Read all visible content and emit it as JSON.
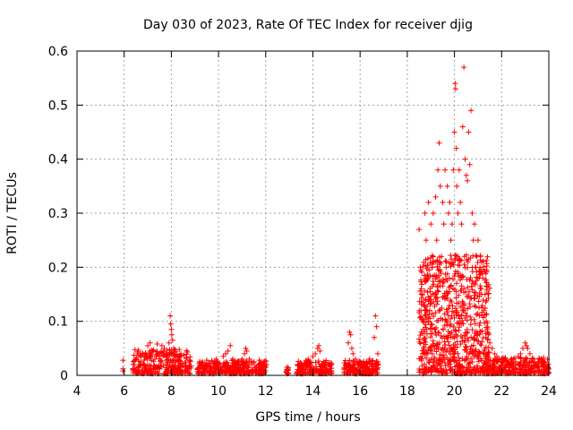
{
  "chart_data": {
    "type": "scatter",
    "title": "Day 030 of 2023, Rate Of TEC Index for receiver djig",
    "xlabel": "GPS time / hours",
    "ylabel": "ROTI / TECUs",
    "xlim": [
      4,
      24
    ],
    "ylim": [
      0,
      0.6
    ],
    "x_ticks": [
      4,
      6,
      8,
      10,
      12,
      14,
      16,
      18,
      20,
      22,
      24
    ],
    "y_ticks": [
      0,
      0.1,
      0.2,
      0.3,
      0.4,
      0.5,
      0.6
    ],
    "x_tick_labels": [
      "4",
      "6",
      "8",
      "10",
      "12",
      "14",
      "16",
      "18",
      "20",
      "22",
      "24"
    ],
    "y_tick_labels": [
      "0",
      "0.1",
      "0.2",
      "0.3",
      "0.4",
      "0.5",
      "0.6"
    ],
    "grid": true,
    "marker": "+",
    "color": "#ff0000",
    "series": [
      {
        "values": [
          [
            5.95,
            0.028
          ],
          [
            5.95,
            0.012
          ],
          [
            5.95,
            0.008
          ],
          [
            6.4,
            0.02
          ],
          [
            6.5,
            0.03
          ],
          [
            6.6,
            0.015
          ],
          [
            6.7,
            0.025
          ],
          [
            6.8,
            0.01
          ],
          [
            6.9,
            0.04
          ],
          [
            7.0,
            0.055
          ],
          [
            7.05,
            0.035
          ],
          [
            7.1,
            0.06
          ],
          [
            7.2,
            0.045
          ],
          [
            7.3,
            0.03
          ],
          [
            7.4,
            0.058
          ],
          [
            7.5,
            0.04
          ],
          [
            7.6,
            0.055
          ],
          [
            7.7,
            0.05
          ],
          [
            7.8,
            0.035
          ],
          [
            7.9,
            0.06
          ],
          [
            7.95,
            0.11
          ],
          [
            7.97,
            0.095
          ],
          [
            8.0,
            0.085
          ],
          [
            8.02,
            0.075
          ],
          [
            8.05,
            0.065
          ],
          [
            8.1,
            0.05
          ],
          [
            8.2,
            0.035
          ],
          [
            8.3,
            0.025
          ],
          [
            8.4,
            0.04
          ],
          [
            8.5,
            0.02
          ],
          [
            8.6,
            0.015
          ],
          [
            8.7,
            0.01
          ],
          [
            9.2,
            0.025
          ],
          [
            9.3,
            0.02
          ],
          [
            9.4,
            0.015
          ],
          [
            9.5,
            0.028
          ],
          [
            9.6,
            0.018
          ],
          [
            9.7,
            0.012
          ],
          [
            9.8,
            0.022
          ],
          [
            9.9,
            0.03
          ],
          [
            10.0,
            0.02
          ],
          [
            10.1,
            0.015
          ],
          [
            10.2,
            0.035
          ],
          [
            10.3,
            0.04
          ],
          [
            10.4,
            0.045
          ],
          [
            10.5,
            0.055
          ],
          [
            10.6,
            0.03
          ],
          [
            10.7,
            0.02
          ],
          [
            10.8,
            0.025
          ],
          [
            10.9,
            0.015
          ],
          [
            11.0,
            0.03
          ],
          [
            11.1,
            0.04
          ],
          [
            11.15,
            0.05
          ],
          [
            11.2,
            0.045
          ],
          [
            11.3,
            0.03
          ],
          [
            11.4,
            0.02
          ],
          [
            11.5,
            0.025
          ],
          [
            11.6,
            0.015
          ],
          [
            11.7,
            0.02
          ],
          [
            11.8,
            0.018
          ],
          [
            11.9,
            0.025
          ],
          [
            12.0,
            0.015
          ],
          [
            12.9,
            0.015
          ],
          [
            12.95,
            0.01
          ],
          [
            13.4,
            0.01
          ],
          [
            13.5,
            0.02
          ],
          [
            13.6,
            0.015
          ],
          [
            13.7,
            0.025
          ],
          [
            13.8,
            0.03
          ],
          [
            13.9,
            0.02
          ],
          [
            14.0,
            0.035
          ],
          [
            14.1,
            0.04
          ],
          [
            14.2,
            0.05
          ],
          [
            14.25,
            0.055
          ],
          [
            14.3,
            0.045
          ],
          [
            14.4,
            0.02
          ],
          [
            14.5,
            0.015
          ],
          [
            14.6,
            0.01
          ],
          [
            14.7,
            0.012
          ],
          [
            15.4,
            0.02
          ],
          [
            15.5,
            0.06
          ],
          [
            15.55,
            0.08
          ],
          [
            15.6,
            0.075
          ],
          [
            15.65,
            0.05
          ],
          [
            15.7,
            0.04
          ],
          [
            15.8,
            0.03
          ],
          [
            15.9,
            0.02
          ],
          [
            16.0,
            0.025
          ],
          [
            16.1,
            0.015
          ],
          [
            16.2,
            0.02
          ],
          [
            16.3,
            0.015
          ],
          [
            16.4,
            0.03
          ],
          [
            16.5,
            0.02
          ],
          [
            16.6,
            0.07
          ],
          [
            16.65,
            0.11
          ],
          [
            16.7,
            0.09
          ],
          [
            16.75,
            0.04
          ],
          [
            18.5,
            0.27
          ],
          [
            18.55,
            0.2
          ],
          [
            18.6,
            0.15
          ],
          [
            18.65,
            0.1
          ],
          [
            18.7,
            0.06
          ],
          [
            18.75,
            0.3
          ],
          [
            18.8,
            0.25
          ],
          [
            18.85,
            0.18
          ],
          [
            18.9,
            0.32
          ],
          [
            18.95,
            0.12
          ],
          [
            19.0,
            0.28
          ],
          [
            19.05,
            0.2
          ],
          [
            19.1,
            0.3
          ],
          [
            19.15,
            0.15
          ],
          [
            19.2,
            0.33
          ],
          [
            19.25,
            0.25
          ],
          [
            19.3,
            0.38
          ],
          [
            19.35,
            0.43
          ],
          [
            19.4,
            0.35
          ],
          [
            19.45,
            0.22
          ],
          [
            19.5,
            0.32
          ],
          [
            19.55,
            0.28
          ],
          [
            19.6,
            0.38
          ],
          [
            19.65,
            0.2
          ],
          [
            19.7,
            0.35
          ],
          [
            19.75,
            0.3
          ],
          [
            19.8,
            0.32
          ],
          [
            19.85,
            0.25
          ],
          [
            19.9,
            0.28
          ],
          [
            19.95,
            0.38
          ],
          [
            20.0,
            0.45
          ],
          [
            20.03,
            0.54
          ],
          [
            20.05,
            0.53
          ],
          [
            20.08,
            0.42
          ],
          [
            20.1,
            0.35
          ],
          [
            20.15,
            0.3
          ],
          [
            20.2,
            0.38
          ],
          [
            20.25,
            0.32
          ],
          [
            20.3,
            0.28
          ],
          [
            20.35,
            0.46
          ],
          [
            20.4,
            0.57
          ],
          [
            20.45,
            0.4
          ],
          [
            20.5,
            0.37
          ],
          [
            20.55,
            0.36
          ],
          [
            20.6,
            0.45
          ],
          [
            20.65,
            0.39
          ],
          [
            20.7,
            0.49
          ],
          [
            20.75,
            0.3
          ],
          [
            20.8,
            0.25
          ],
          [
            20.85,
            0.28
          ],
          [
            20.9,
            0.2
          ],
          [
            20.95,
            0.22
          ],
          [
            21.0,
            0.25
          ],
          [
            21.05,
            0.18
          ],
          [
            21.1,
            0.22
          ],
          [
            21.15,
            0.15
          ],
          [
            21.2,
            0.18
          ],
          [
            21.25,
            0.12
          ],
          [
            21.3,
            0.15
          ],
          [
            21.35,
            0.1
          ],
          [
            21.4,
            0.08
          ],
          [
            21.5,
            0.06
          ],
          [
            21.6,
            0.05
          ],
          [
            21.7,
            0.04
          ],
          [
            21.8,
            0.035
          ],
          [
            21.9,
            0.03
          ],
          [
            22.0,
            0.025
          ],
          [
            22.1,
            0.03
          ],
          [
            22.2,
            0.02
          ],
          [
            22.3,
            0.025
          ],
          [
            22.4,
            0.02
          ],
          [
            22.5,
            0.03
          ],
          [
            22.6,
            0.025
          ],
          [
            22.7,
            0.035
          ],
          [
            22.8,
            0.04
          ],
          [
            22.9,
            0.05
          ],
          [
            23.0,
            0.06
          ],
          [
            23.05,
            0.055
          ],
          [
            23.1,
            0.05
          ],
          [
            23.2,
            0.04
          ],
          [
            23.3,
            0.03
          ],
          [
            23.4,
            0.025
          ],
          [
            23.5,
            0.02
          ],
          [
            23.6,
            0.03
          ],
          [
            23.7,
            0.025
          ],
          [
            23.8,
            0.02
          ],
          [
            23.9,
            0.015
          ],
          [
            23.95,
            0.01
          ],
          [
            24.0,
            0.012
          ]
        ]
      }
    ],
    "dense_bands": [
      {
        "x_start": 6.35,
        "x_end": 8.85,
        "y_max": 0.045
      },
      {
        "x_start": 9.1,
        "x_end": 12.05,
        "y_max": 0.025
      },
      {
        "x_start": 12.85,
        "x_end": 12.98,
        "y_max": 0.012
      },
      {
        "x_start": 13.3,
        "x_end": 14.8,
        "y_max": 0.025
      },
      {
        "x_start": 15.3,
        "x_end": 16.8,
        "y_max": 0.025
      },
      {
        "x_start": 18.5,
        "x_end": 21.5,
        "y_max": 0.22
      },
      {
        "x_start": 21.5,
        "x_end": 24.0,
        "y_max": 0.03
      }
    ]
  }
}
